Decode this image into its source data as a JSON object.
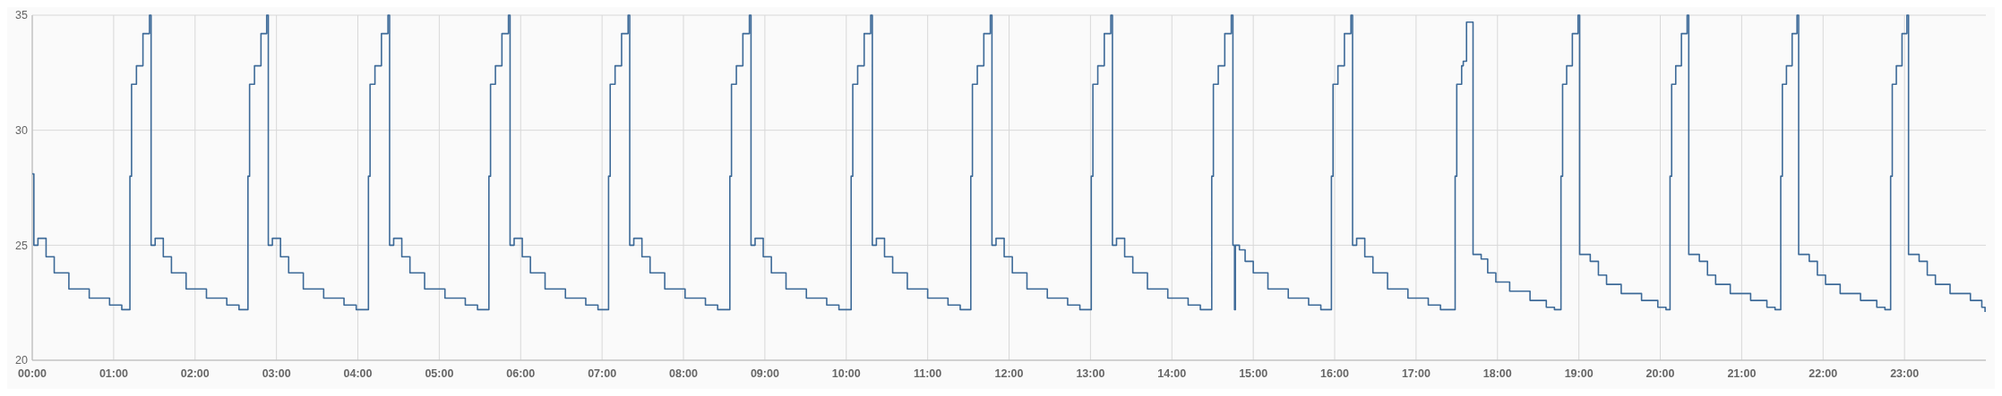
{
  "chart_data": {
    "type": "step",
    "xlim": [
      0,
      24
    ],
    "ylim": [
      20,
      35
    ],
    "yticks": [
      20,
      25,
      30,
      35
    ],
    "xticks": [
      {
        "value": 0,
        "label": "00:00"
      },
      {
        "value": 1,
        "label": "01:00"
      },
      {
        "value": 2,
        "label": "02:00"
      },
      {
        "value": 3,
        "label": "03:00"
      },
      {
        "value": 4,
        "label": "04:00"
      },
      {
        "value": 5,
        "label": "05:00"
      },
      {
        "value": 6,
        "label": "06:00"
      },
      {
        "value": 7,
        "label": "07:00"
      },
      {
        "value": 8,
        "label": "08:00"
      },
      {
        "value": 9,
        "label": "09:00"
      },
      {
        "value": 10,
        "label": "10:00"
      },
      {
        "value": 11,
        "label": "11:00"
      },
      {
        "value": 12,
        "label": "12:00"
      },
      {
        "value": 13,
        "label": "13:00"
      },
      {
        "value": 14,
        "label": "14:00"
      },
      {
        "value": 15,
        "label": "15:00"
      },
      {
        "value": 16,
        "label": "16:00"
      },
      {
        "value": 17,
        "label": "17:00"
      },
      {
        "value": 18,
        "label": "18:00"
      },
      {
        "value": 19,
        "label": "19:00"
      },
      {
        "value": 20,
        "label": "20:00"
      },
      {
        "value": 21,
        "label": "21:00"
      },
      {
        "value": 22,
        "label": "22:00"
      },
      {
        "value": 23,
        "label": "23:00"
      }
    ],
    "grid": true,
    "series": [
      {
        "color": "#3d6a98",
        "x": [
          0,
          0.02,
          0.07,
          0.17,
          0.27,
          0.45,
          0.7,
          0.95,
          1.1,
          1.2,
          1.22,
          1.28,
          1.36,
          1.44,
          1.46,
          1.51,
          1.61,
          1.71,
          1.89,
          2.14,
          2.39,
          2.54,
          2.65,
          2.67,
          2.73,
          2.81,
          2.88,
          2.9,
          2.95,
          3.05,
          3.15,
          3.33,
          3.58,
          3.83,
          3.98,
          4.13,
          4.15,
          4.21,
          4.29,
          4.37,
          4.39,
          4.44,
          4.54,
          4.64,
          4.82,
          5.07,
          5.32,
          5.47,
          5.61,
          5.63,
          5.69,
          5.77,
          5.85,
          5.87,
          5.92,
          6.02,
          6.12,
          6.3,
          6.55,
          6.8,
          6.95,
          7.08,
          7.1,
          7.16,
          7.24,
          7.32,
          7.34,
          7.39,
          7.49,
          7.59,
          7.77,
          8.02,
          8.27,
          8.42,
          8.57,
          8.59,
          8.65,
          8.73,
          8.81,
          8.83,
          8.88,
          8.98,
          9.08,
          9.26,
          9.51,
          9.76,
          9.91,
          10.06,
          10.08,
          10.14,
          10.22,
          10.3,
          10.32,
          10.37,
          10.47,
          10.57,
          10.75,
          11,
          11.25,
          11.4,
          11.53,
          11.55,
          11.61,
          11.69,
          11.77,
          11.79,
          11.84,
          11.94,
          12.04,
          12.22,
          12.47,
          12.72,
          12.87,
          13.01,
          13.03,
          13.09,
          13.17,
          13.25,
          13.27,
          13.32,
          13.42,
          13.52,
          13.7,
          13.95,
          14.2,
          14.35,
          14.49,
          14.51,
          14.57,
          14.65,
          14.73,
          14.75,
          14.77,
          14.78,
          14.83,
          14.9,
          15,
          15.18,
          15.43,
          15.68,
          15.83,
          15.96,
          15.98,
          16.04,
          16.12,
          16.2,
          16.22,
          16.27,
          16.37,
          16.47,
          16.65,
          16.9,
          17.15,
          17.3,
          17.48,
          17.5,
          17.56,
          17.58,
          17.62,
          17.7,
          17.8,
          17.88,
          17.98,
          18.15,
          18.4,
          18.6,
          18.7,
          18.78,
          18.8,
          18.85,
          18.92,
          18.99,
          19.01,
          19.14,
          19.24,
          19.34,
          19.52,
          19.77,
          19.97,
          20.07,
          20.12,
          20.14,
          20.19,
          20.26,
          20.33,
          20.35,
          20.48,
          20.58,
          20.68,
          20.86,
          21.11,
          21.31,
          21.41,
          21.48,
          21.5,
          21.55,
          21.62,
          21.68,
          21.7,
          21.83,
          21.93,
          22.03,
          22.21,
          22.46,
          22.66,
          22.76,
          22.83,
          22.85,
          22.9,
          22.97,
          23.03,
          23.05,
          23.18,
          23.28,
          23.38,
          23.56,
          23.81,
          23.95,
          23.99
        ],
        "values": [
          28.1,
          25,
          25.3,
          24.5,
          23.8,
          23.1,
          22.7,
          22.4,
          22.2,
          28,
          32,
          32.8,
          34.2,
          35,
          25,
          25.3,
          24.5,
          23.8,
          23.1,
          22.7,
          22.4,
          22.2,
          28,
          32,
          32.8,
          34.2,
          35,
          25,
          25.3,
          24.5,
          23.8,
          23.1,
          22.7,
          22.4,
          22.2,
          28,
          32,
          32.8,
          34.2,
          35,
          25,
          25.3,
          24.5,
          23.8,
          23.1,
          22.7,
          22.4,
          22.2,
          28,
          32,
          32.8,
          34.2,
          35,
          25,
          25.3,
          24.5,
          23.8,
          23.1,
          22.7,
          22.4,
          22.2,
          28,
          32,
          32.8,
          34.2,
          35,
          25,
          25.3,
          24.5,
          23.8,
          23.1,
          22.7,
          22.4,
          22.2,
          28,
          32,
          32.8,
          34.2,
          35,
          25,
          25.3,
          24.5,
          23.8,
          23.1,
          22.7,
          22.4,
          22.2,
          28,
          32,
          32.8,
          34.2,
          35,
          25,
          25.3,
          24.5,
          23.8,
          23.1,
          22.7,
          22.4,
          22.2,
          28,
          32,
          32.8,
          34.2,
          35,
          25,
          25.3,
          24.5,
          23.8,
          23.1,
          22.7,
          22.4,
          22.2,
          28,
          32,
          32.8,
          34.2,
          35,
          25,
          25.3,
          24.5,
          23.8,
          23.1,
          22.7,
          22.4,
          22.2,
          28,
          32,
          32.8,
          34.2,
          35,
          25,
          22.2,
          25,
          24.8,
          24.3,
          23.8,
          23.1,
          22.7,
          22.4,
          22.2,
          28,
          32,
          32.8,
          34.2,
          35,
          25,
          25.3,
          24.5,
          23.8,
          23.1,
          22.7,
          22.4,
          22.2,
          28,
          32,
          32.8,
          33,
          34.7,
          24.6,
          24.4,
          23.8,
          23.4,
          23,
          22.6,
          22.3,
          22.2,
          28,
          32,
          32.8,
          34.2,
          35,
          24.6,
          24.3,
          23.7,
          23.3,
          22.9,
          22.6,
          22.3,
          22.2,
          28,
          32,
          32.8,
          34.2,
          35,
          24.6,
          24.3,
          23.7,
          23.3,
          22.9,
          22.6,
          22.3,
          22.2,
          28,
          32,
          32.8,
          34.2,
          35,
          24.6,
          24.3,
          23.7,
          23.3,
          22.9,
          22.6,
          22.3,
          22.2,
          28,
          32,
          32.8,
          34.2,
          35,
          24.6,
          24.3,
          23.7,
          23.3,
          22.9,
          22.6,
          22.3,
          22.1
        ]
      }
    ]
  }
}
